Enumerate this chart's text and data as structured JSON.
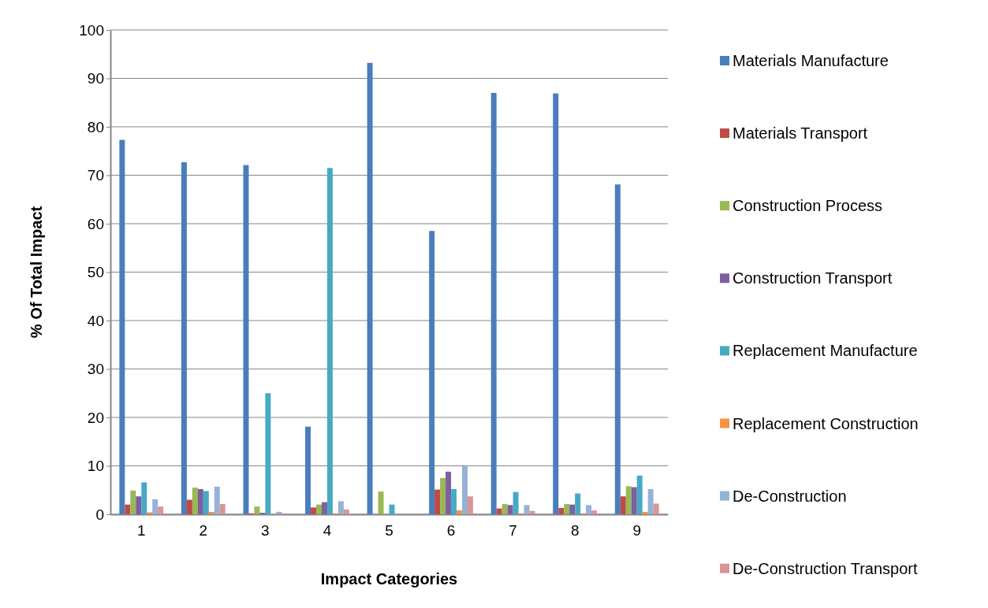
{
  "chart_data": {
    "type": "bar",
    "xlabel": "Impact Categories",
    "ylabel": "% Of Total Impact",
    "categories": [
      "1",
      "2",
      "3",
      "4",
      "5",
      "6",
      "7",
      "8",
      "9"
    ],
    "ylim": [
      0,
      100
    ],
    "yticks": [
      0,
      10,
      20,
      30,
      40,
      50,
      60,
      70,
      80,
      90,
      100
    ],
    "grid": "y",
    "legend": "right",
    "series": [
      {
        "name": "Materials Manufacture",
        "color": "#4a7ebb",
        "values": [
          77.3,
          72.7,
          72.1,
          18.1,
          93.2,
          58.5,
          87.0,
          86.9,
          68.1
        ]
      },
      {
        "name": "Materials Transport",
        "color": "#be4b48",
        "values": [
          2.0,
          3.0,
          0.2,
          1.4,
          0,
          5.1,
          1.2,
          1.3,
          3.7
        ]
      },
      {
        "name": "Construction Process",
        "color": "#98b954",
        "values": [
          4.9,
          5.5,
          1.6,
          2.0,
          4.7,
          7.5,
          2.1,
          2.1,
          5.8
        ]
      },
      {
        "name": "Construction Transport",
        "color": "#7d60a0",
        "values": [
          3.7,
          5.2,
          0.3,
          2.5,
          0,
          8.8,
          1.9,
          2.0,
          5.6
        ]
      },
      {
        "name": "Replacement Manufacture",
        "color": "#46aac5",
        "values": [
          6.6,
          4.8,
          25.0,
          71.5,
          2.0,
          5.2,
          4.6,
          4.3,
          8.0
        ]
      },
      {
        "name": "Replacement Construction",
        "color": "#f69240",
        "values": [
          0.4,
          0.5,
          0,
          0.2,
          0,
          0.8,
          0.2,
          0.2,
          0.5
        ]
      },
      {
        "name": "De-Construction",
        "color": "#95b3d7",
        "values": [
          3.1,
          5.7,
          0.5,
          2.7,
          0,
          9.9,
          1.9,
          1.9,
          5.2
        ]
      },
      {
        "name": "De-Construction Transport",
        "color": "#d99694",
        "values": [
          1.6,
          2.1,
          0.2,
          1.0,
          0,
          3.7,
          0.7,
          0.8,
          2.2
        ]
      }
    ]
  }
}
